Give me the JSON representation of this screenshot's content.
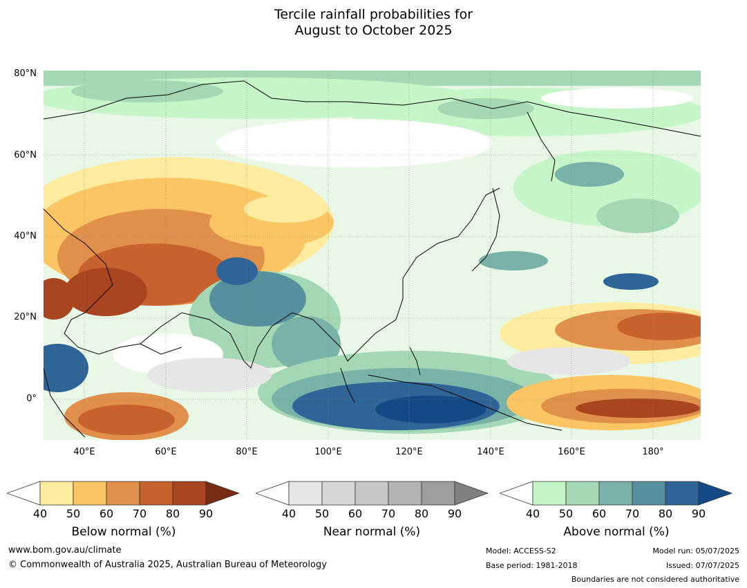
{
  "title_line1": "Tercile rainfall probabilities for",
  "title_line2": "August to October 2025",
  "lat_labels": [
    "80°N",
    "60°N",
    "40°N",
    "20°N",
    "0°"
  ],
  "lon_labels": [
    "40°E",
    "60°E",
    "80°E",
    "100°E",
    "120°E",
    "140°E",
    "160°E",
    "180°"
  ],
  "legends": [
    {
      "title": "Below normal (%)",
      "ticks": [
        "40",
        "50",
        "60",
        "70",
        "80",
        "90"
      ],
      "colors": [
        "#ffffff",
        "#fdeba0",
        "#fcc563",
        "#e0904a",
        "#c7622f",
        "#a8441f",
        "#7a2c12"
      ]
    },
    {
      "title": "Near normal (%)",
      "ticks": [
        "40",
        "50",
        "60",
        "70",
        "80",
        "90"
      ],
      "colors": [
        "#ffffff",
        "#e6e6e6",
        "#d6d6d6",
        "#c6c6c6",
        "#b3b3b3",
        "#9e9e9e",
        "#808080"
      ]
    },
    {
      "title": "Above normal (%)",
      "ticks": [
        "40",
        "50",
        "60",
        "70",
        "80",
        "90"
      ],
      "colors": [
        "#ffffff",
        "#c6f5c8",
        "#a4d7b4",
        "#79b2a8",
        "#56909e",
        "#2f6496",
        "#134a86"
      ]
    }
  ],
  "footer": {
    "website": "www.bom.gov.au/climate",
    "copyright": "© Commonwealth of Australia 2025, Australian Bureau of Meteorology",
    "model": "Model: ACCESS-S2",
    "base_period": "Base period: 1981-2018",
    "model_run": "Model run: 05/07/2025",
    "issued": "Issued: 07/07/2025",
    "disclaimer": "Boundaries are not considered authoritative"
  }
}
